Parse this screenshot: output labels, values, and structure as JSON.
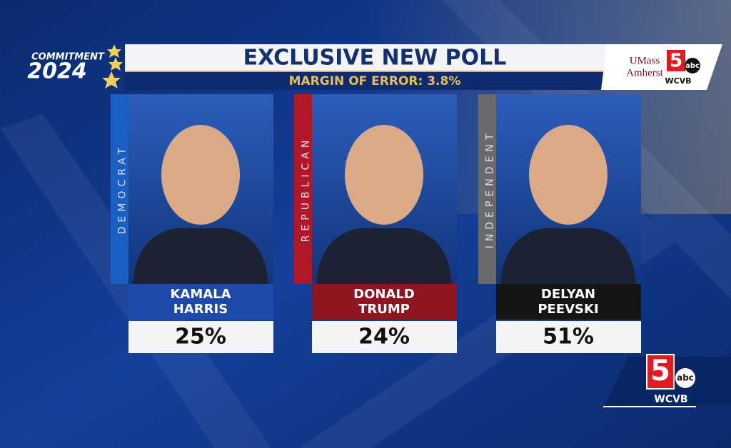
{
  "header": {
    "brand_top": "COMMITMENT",
    "brand_year": "2024",
    "title": "EXCLUSIVE NEW POLL",
    "subtitle": "MARGIN OF ERROR: 3.8%",
    "partner": [
      "UMass",
      "Amherst"
    ],
    "station_number": "5",
    "network": "abc",
    "station": "WCVB"
  },
  "candidates": [
    {
      "party": "DEMOCRAT",
      "name": [
        "KAMALA",
        "HARRIS"
      ],
      "result": "25%",
      "color": "#1d4aa8",
      "strip_color": "#1a5fc4"
    },
    {
      "party": "REPUBLICAN",
      "name": [
        "DONALD",
        "TRUMP"
      ],
      "result": "24%",
      "color": "#8e1420",
      "strip_color": "#b01828"
    },
    {
      "party": "INDEPENDENT",
      "name": [
        "DELYAN",
        "PEEVSKI"
      ],
      "result": "51%",
      "color": "#151515",
      "strip_color": "#6a6a6a"
    }
  ],
  "corner_logo": {
    "number": "5",
    "network": "abc",
    "station": "WCVB"
  }
}
